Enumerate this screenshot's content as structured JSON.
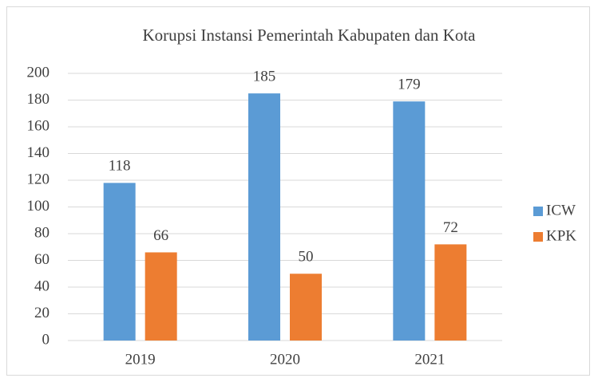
{
  "chart_data": {
    "type": "bar",
    "title": "Korupsi Instansi Pemerintah Kabupaten dan Kota",
    "categories": [
      "2019",
      "2020",
      "2021"
    ],
    "series": [
      {
        "name": "ICW",
        "color": "#5b9bd5",
        "values": [
          118,
          185,
          179
        ]
      },
      {
        "name": "KPK",
        "color": "#ed7d31",
        "values": [
          66,
          50,
          72
        ]
      }
    ],
    "ylim": [
      0,
      200
    ],
    "yticks": [
      0,
      20,
      40,
      60,
      80,
      100,
      120,
      140,
      160,
      180,
      200
    ],
    "grid": true,
    "legend": "right"
  }
}
